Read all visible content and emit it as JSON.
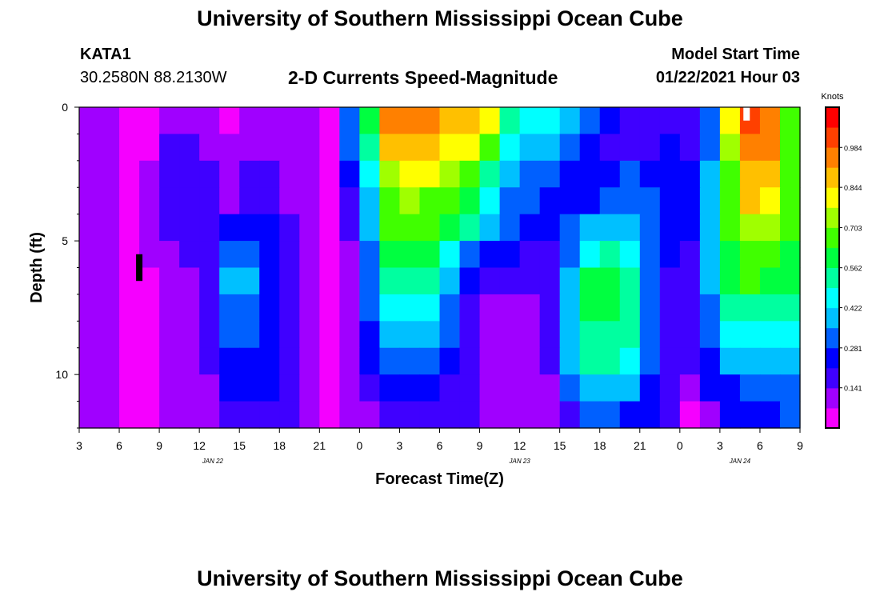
{
  "header": {
    "title_top": "University of Southern Mississippi Ocean Cube",
    "station": "KATA1",
    "coords": "30.2580N 88.2130W",
    "chart_title": "2-D Currents Speed-Magnitude",
    "model_start_label": "Model Start Time",
    "model_start_value": "01/22/2021 Hour 03",
    "title_bottom": "University of Southern Mississippi Ocean Cube"
  },
  "chart_data": {
    "type": "heatmap",
    "title": "2-D Currents Speed-Magnitude",
    "xlabel": "Forecast Time(Z)",
    "ylabel": "Depth (ft)",
    "x_range_hours": [
      0,
      54
    ],
    "y_range_ft": [
      0,
      12
    ],
    "y_ticks": [
      0,
      5,
      10
    ],
    "y_tick_labels": [
      "0",
      "5",
      "10"
    ],
    "x_tick_labels": [
      "3",
      "6",
      "9",
      "12",
      "15",
      "18",
      "21",
      "0",
      "3",
      "6",
      "9",
      "12",
      "15",
      "18",
      "21",
      "0",
      "3",
      "6",
      "9"
    ],
    "date_labels": [
      {
        "label": "JAN  22",
        "hour": 10
      },
      {
        "label": "JAN  23",
        "hour": 33
      },
      {
        "label": "JAN  24",
        "hour": 49.5
      }
    ],
    "colorbar": {
      "units": "Knots",
      "min": 0,
      "max": 1.125,
      "tick_values": [
        0.141,
        0.281,
        0.422,
        0.562,
        0.703,
        0.844,
        0.984
      ],
      "tick_labels": [
        "0.141",
        "0.281",
        "0.422",
        "0.562",
        "0.703",
        "0.844",
        "0.984"
      ]
    },
    "depth_levels_ft": [
      0.5,
      1.5,
      2.5,
      3.5,
      4.5,
      5.5,
      6.5,
      7.5,
      8.5,
      9.5,
      10.5,
      11.5
    ],
    "speed_knots": [
      [
        0.12,
        0.08,
        0.02,
        0.06,
        0.14,
        0.14,
        0.12,
        0.05,
        0.1,
        0.13,
        0.11,
        0.08,
        0.04,
        0.3,
        0.6,
        0.93,
        0.98,
        0.95,
        0.9,
        0.88,
        0.82,
        0.55,
        0.45,
        0.45,
        0.42,
        0.35,
        0.25,
        0.2,
        0.18,
        0.2,
        0.15,
        0.3,
        0.8,
        1.0,
        0.95,
        0.7
      ],
      [
        0.12,
        0.08,
        0.02,
        0.07,
        0.15,
        0.16,
        0.14,
        0.08,
        0.12,
        0.14,
        0.12,
        0.09,
        0.05,
        0.3,
        0.55,
        0.85,
        0.88,
        0.85,
        0.8,
        0.78,
        0.65,
        0.45,
        0.4,
        0.38,
        0.33,
        0.28,
        0.2,
        0.18,
        0.2,
        0.22,
        0.18,
        0.35,
        0.75,
        0.98,
        0.92,
        0.7
      ],
      [
        0.12,
        0.08,
        0.03,
        0.08,
        0.15,
        0.18,
        0.16,
        0.1,
        0.15,
        0.16,
        0.13,
        0.1,
        0.06,
        0.22,
        0.45,
        0.75,
        0.8,
        0.78,
        0.72,
        0.7,
        0.55,
        0.4,
        0.32,
        0.3,
        0.26,
        0.24,
        0.28,
        0.3,
        0.28,
        0.25,
        0.22,
        0.38,
        0.7,
        0.9,
        0.85,
        0.68
      ],
      [
        0.12,
        0.08,
        0.03,
        0.08,
        0.15,
        0.18,
        0.18,
        0.13,
        0.18,
        0.18,
        0.14,
        0.1,
        0.06,
        0.18,
        0.42,
        0.7,
        0.72,
        0.7,
        0.66,
        0.62,
        0.48,
        0.35,
        0.3,
        0.28,
        0.26,
        0.28,
        0.32,
        0.34,
        0.3,
        0.26,
        0.25,
        0.4,
        0.68,
        0.85,
        0.8,
        0.66
      ],
      [
        0.12,
        0.08,
        0.03,
        0.09,
        0.15,
        0.17,
        0.18,
        0.24,
        0.25,
        0.22,
        0.16,
        0.12,
        0.07,
        0.15,
        0.4,
        0.66,
        0.68,
        0.65,
        0.58,
        0.52,
        0.4,
        0.3,
        0.26,
        0.24,
        0.3,
        0.38,
        0.4,
        0.38,
        0.3,
        0.24,
        0.24,
        0.4,
        0.66,
        0.76,
        0.74,
        0.64
      ],
      [
        0.12,
        0.08,
        0.02,
        0.08,
        0.14,
        0.15,
        0.17,
        0.3,
        0.3,
        0.26,
        0.18,
        0.13,
        0.07,
        0.13,
        0.35,
        0.6,
        0.62,
        0.58,
        0.48,
        0.35,
        0.26,
        0.22,
        0.2,
        0.2,
        0.34,
        0.48,
        0.5,
        0.46,
        0.32,
        0.22,
        0.2,
        0.38,
        0.62,
        0.66,
        0.64,
        0.6
      ],
      [
        0.12,
        0.08,
        0.02,
        0.07,
        0.13,
        0.13,
        0.16,
        0.36,
        0.36,
        0.28,
        0.18,
        0.13,
        0.07,
        0.12,
        0.32,
        0.54,
        0.55,
        0.5,
        0.4,
        0.24,
        0.16,
        0.16,
        0.15,
        0.18,
        0.4,
        0.58,
        0.6,
        0.55,
        0.34,
        0.2,
        0.18,
        0.36,
        0.62,
        0.64,
        0.62,
        0.58
      ],
      [
        0.12,
        0.08,
        0.03,
        0.07,
        0.13,
        0.12,
        0.15,
        0.34,
        0.34,
        0.28,
        0.19,
        0.13,
        0.07,
        0.11,
        0.3,
        0.46,
        0.48,
        0.44,
        0.34,
        0.2,
        0.14,
        0.14,
        0.14,
        0.18,
        0.4,
        0.6,
        0.62,
        0.56,
        0.34,
        0.2,
        0.17,
        0.34,
        0.56,
        0.56,
        0.56,
        0.54
      ],
      [
        0.12,
        0.08,
        0.03,
        0.07,
        0.12,
        0.12,
        0.15,
        0.3,
        0.3,
        0.26,
        0.2,
        0.13,
        0.07,
        0.1,
        0.26,
        0.38,
        0.4,
        0.38,
        0.3,
        0.18,
        0.13,
        0.13,
        0.13,
        0.17,
        0.38,
        0.55,
        0.56,
        0.52,
        0.32,
        0.19,
        0.16,
        0.3,
        0.45,
        0.45,
        0.45,
        0.44
      ],
      [
        0.12,
        0.08,
        0.03,
        0.07,
        0.12,
        0.12,
        0.15,
        0.28,
        0.28,
        0.24,
        0.2,
        0.13,
        0.07,
        0.1,
        0.22,
        0.32,
        0.32,
        0.3,
        0.24,
        0.17,
        0.13,
        0.13,
        0.12,
        0.16,
        0.36,
        0.5,
        0.5,
        0.46,
        0.3,
        0.18,
        0.15,
        0.28,
        0.38,
        0.4,
        0.4,
        0.4
      ],
      [
        0.12,
        0.08,
        0.03,
        0.07,
        0.12,
        0.11,
        0.14,
        0.22,
        0.24,
        0.22,
        0.18,
        0.12,
        0.06,
        0.09,
        0.18,
        0.26,
        0.26,
        0.24,
        0.2,
        0.16,
        0.13,
        0.12,
        0.11,
        0.14,
        0.3,
        0.42,
        0.42,
        0.4,
        0.28,
        0.17,
        0.14,
        0.25,
        0.28,
        0.3,
        0.32,
        0.32
      ],
      [
        0.12,
        0.08,
        0.03,
        0.07,
        0.12,
        0.11,
        0.13,
        0.18,
        0.2,
        0.18,
        0.16,
        0.11,
        0.05,
        0.08,
        0.14,
        0.18,
        0.18,
        0.18,
        0.17,
        0.15,
        0.13,
        0.11,
        0.1,
        0.12,
        0.2,
        0.3,
        0.3,
        0.28,
        0.22,
        0.15,
        0.02,
        0.12,
        0.22,
        0.25,
        0.28,
        0.3
      ]
    ],
    "markers": [
      {
        "color": "#000000",
        "hour": 4.5,
        "depth_range_ft": [
          5.5,
          6.5
        ]
      },
      {
        "color": "#ffffff",
        "hour": 50,
        "depth_range_ft": [
          0,
          0.5
        ]
      }
    ]
  },
  "colors": {
    "colormap": [
      "#f500ff",
      "#a000ff",
      "#3f00ff",
      "#0000ff",
      "#0060ff",
      "#00c0ff",
      "#00ffff",
      "#00ffa0",
      "#00ff40",
      "#40ff00",
      "#a0ff00",
      "#ffff00",
      "#ffc000",
      "#ff8000",
      "#ff4000",
      "#ff0000"
    ]
  }
}
